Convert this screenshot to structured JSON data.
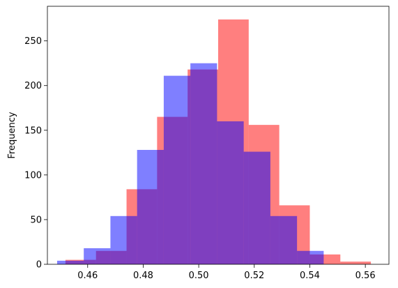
{
  "chart_data": {
    "type": "bar",
    "title": "",
    "xlabel": "",
    "ylabel": "Frequency",
    "xlim": [
      0.4455,
      0.5685
    ],
    "ylim": [
      0,
      288.75
    ],
    "grid": false,
    "legend": "none",
    "x_ticks": [
      {
        "value": 0.46,
        "label": "0.46"
      },
      {
        "value": 0.48,
        "label": "0.48"
      },
      {
        "value": 0.5,
        "label": "0.50"
      },
      {
        "value": 0.52,
        "label": "0.52"
      },
      {
        "value": 0.54,
        "label": "0.54"
      },
      {
        "value": 0.56,
        "label": "0.56"
      }
    ],
    "y_ticks": [
      {
        "value": 0,
        "label": "0"
      },
      {
        "value": 50,
        "label": "50"
      },
      {
        "value": 100,
        "label": "100"
      },
      {
        "value": 150,
        "label": "150"
      },
      {
        "value": 200,
        "label": "200"
      },
      {
        "value": 250,
        "label": "250"
      }
    ],
    "series": [
      {
        "color": "#ff0000",
        "alpha": 0.5,
        "bin_edges": [
          0.452,
          0.463,
          0.474,
          0.485,
          0.496,
          0.507,
          0.518,
          0.529,
          0.54,
          0.551,
          0.562
        ],
        "counts": [
          5,
          15,
          84,
          165,
          218,
          274,
          156,
          66,
          11,
          3
        ]
      },
      {
        "color": "#0000ff",
        "alpha": 0.5,
        "bin_edges": [
          0.449,
          0.4586,
          0.4682,
          0.4778,
          0.4874,
          0.497,
          0.5066,
          0.5162,
          0.5258,
          0.5354,
          0.545
        ],
        "counts": [
          4,
          18,
          54,
          128,
          211,
          225,
          160,
          126,
          54,
          15
        ]
      }
    ]
  }
}
